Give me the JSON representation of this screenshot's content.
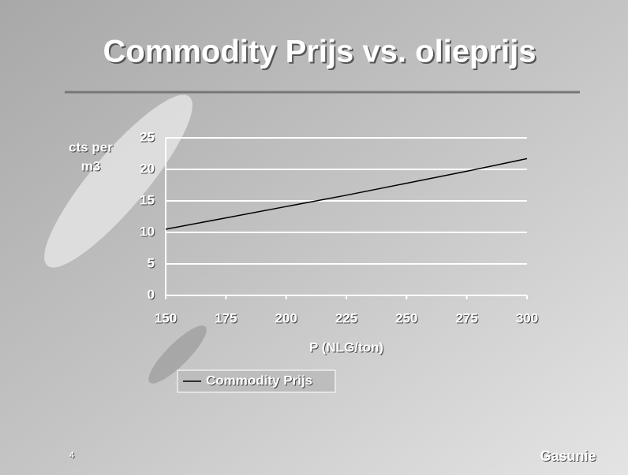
{
  "chart_data": {
    "type": "line",
    "title": "Commodity Prijs vs. olieprijs",
    "y_label": [
      "cts per",
      "m3"
    ],
    "x_label": "P (NLG/ton)",
    "x": [
      150,
      175,
      200,
      225,
      250,
      275,
      300
    ],
    "series": [
      {
        "name": "Commodity Prijs",
        "color": "#000000",
        "values": [
          10.5,
          12.3,
          14.1,
          15.9,
          17.8,
          19.7,
          21.7
        ]
      }
    ],
    "xlim": [
      150,
      300
    ],
    "xticks": [
      150,
      175,
      200,
      225,
      250,
      275,
      300
    ],
    "ylim": [
      0,
      25
    ],
    "yticks": [
      0,
      5,
      10,
      15,
      20,
      25
    ],
    "grid": true,
    "legend": "bottom"
  },
  "footer": {
    "page_number": "4",
    "logo": "Gasunie"
  }
}
